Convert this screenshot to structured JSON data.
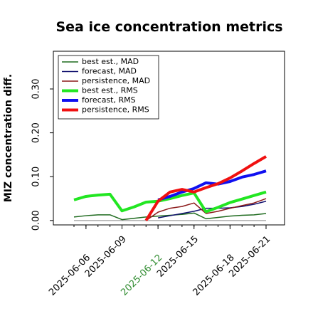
{
  "chart_data": {
    "type": "line",
    "title": "Sea ice concentration metrics",
    "y_label": "MIZ concentration diff.",
    "x": [
      "2025-06-05",
      "2025-06-06",
      "2025-06-07",
      "2025-06-08",
      "2025-06-09",
      "2025-06-10",
      "2025-06-11",
      "2025-06-12",
      "2025-06-13",
      "2025-06-14",
      "2025-06-15",
      "2025-06-16",
      "2025-06-17",
      "2025-06-18",
      "2025-06-19",
      "2025-06-20",
      "2025-06-21"
    ],
    "xticks": [
      "2025-06-06",
      "2025-06-09",
      "2025-06-12",
      "2025-06-15",
      "2025-06-18",
      "2025-06-21"
    ],
    "xtick_highlight": "2025-06-12",
    "xtick_highlight_color": "#2e8b2e",
    "ylim": [
      -0.01,
      0.386
    ],
    "yticks": [
      {
        "value": 0,
        "label": "0.00"
      },
      {
        "value": 0.1,
        "label": "0.10"
      },
      {
        "value": 0.2,
        "label": "0.20"
      },
      {
        "value": 0.3,
        "label": "0.30"
      }
    ],
    "legend": "upper left",
    "series": [
      {
        "name": "best est., MAD",
        "color": "#1f6b1f",
        "width": 1.5,
        "values": [
          0.008,
          0.011,
          0.013,
          0.013,
          0.002,
          0.005,
          0.008,
          0.01,
          0.012,
          0.014,
          0.017,
          0.004,
          0.007,
          0.01,
          0.012,
          0.013,
          0.016
        ]
      },
      {
        "name": "forecast,  MAD",
        "color": "#10106e",
        "width": 1.5,
        "values": [
          null,
          null,
          null,
          null,
          null,
          null,
          null,
          0.006,
          0.011,
          0.016,
          0.021,
          0.028,
          0.028,
          0.029,
          0.032,
          0.037,
          0.044
        ]
      },
      {
        "name": "persistence, MAD",
        "color": "#8b1a1a",
        "width": 1.5,
        "values": [
          null,
          null,
          null,
          null,
          null,
          null,
          0,
          0.019,
          0.028,
          0.032,
          0.04,
          0.016,
          0.021,
          0.028,
          0.034,
          0.04,
          0.05
        ]
      },
      {
        "name": "best est., RMS",
        "color": "#22e622",
        "width": 4,
        "values": [
          0.047,
          0.055,
          0.058,
          0.06,
          0.022,
          0.031,
          0.042,
          0.044,
          0.05,
          0.057,
          0.063,
          0.02,
          0.03,
          0.041,
          0.049,
          0.057,
          0.065
        ]
      },
      {
        "name": "forecast,  RMS",
        "color": "#1010f0",
        "width": 4,
        "values": [
          null,
          null,
          null,
          null,
          null,
          null,
          null,
          0.047,
          0.055,
          0.065,
          0.073,
          0.086,
          0.083,
          0.089,
          0.099,
          0.105,
          0.113
        ]
      },
      {
        "name": "persistence, RMS",
        "color": "#f01010",
        "width": 4,
        "values": [
          null,
          null,
          null,
          null,
          null,
          null,
          0,
          0.044,
          0.065,
          0.071,
          0.065,
          0.075,
          0.084,
          0.097,
          0.113,
          0.13,
          0.146
        ]
      }
    ]
  }
}
